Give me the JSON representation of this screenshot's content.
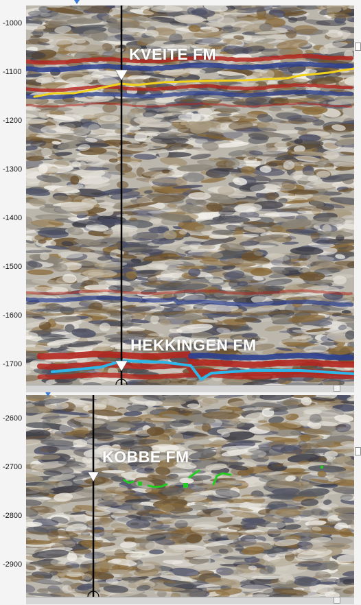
{
  "panels": [
    {
      "id": "top",
      "formation_label": "KVEITE FM",
      "lower_formation_label": "HEKKINGEN FM",
      "depth_ticks": [
        "-1000",
        "-1100",
        "-1200",
        "-1300",
        "-1400",
        "-1500",
        "-1600",
        "-1700"
      ],
      "horizon_colors": {
        "kveite": "#f2d21b",
        "hekkingen": "#2fb6e8"
      }
    },
    {
      "id": "bottom",
      "formation_label": "KOBBE FM",
      "depth_ticks": [
        "-2600",
        "-2700",
        "-2800",
        "-2900"
      ],
      "horizon_colors": {
        "kobbe": "#22cc22"
      }
    }
  ],
  "colors": {
    "well_line": "#000000",
    "well_marker": "#ffffff",
    "seismic_red": "#b3261e",
    "seismic_blue": "#2b3f8f",
    "seismic_brown": "#7a5b2f"
  }
}
